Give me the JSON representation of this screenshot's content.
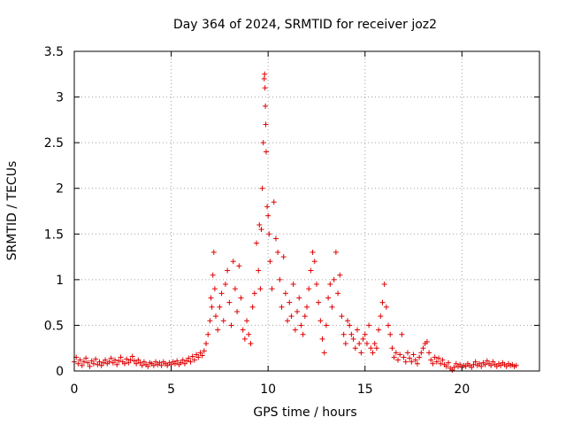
{
  "chart_data": {
    "type": "scatter",
    "title": "Day 364 of 2024, SRMTID for receiver joz2",
    "xlabel": "GPS time / hours",
    "ylabel": "SRMTID / TECUs",
    "xlim": [
      0,
      24
    ],
    "ylim": [
      0,
      3.5
    ],
    "x_ticks": [
      0,
      5,
      10,
      15,
      20
    ],
    "x_tick_labels": [
      "0",
      "5",
      "10",
      "15",
      "20"
    ],
    "y_ticks": [
      0,
      0.5,
      1,
      1.5,
      2,
      2.5,
      3,
      3.5
    ],
    "y_tick_labels": [
      "0",
      "0.5",
      "1",
      "1.5",
      "2",
      "2.5",
      "3",
      "3.5"
    ],
    "grid": true,
    "marker": "+",
    "series": [
      {
        "name": "SRMTID",
        "color": "#e00000",
        "points": [
          [
            0.0,
            0.1
          ],
          [
            0.1,
            0.15
          ],
          [
            0.2,
            0.08
          ],
          [
            0.3,
            0.12
          ],
          [
            0.4,
            0.06
          ],
          [
            0.5,
            0.1
          ],
          [
            0.6,
            0.14
          ],
          [
            0.7,
            0.09
          ],
          [
            0.8,
            0.05
          ],
          [
            0.9,
            0.11
          ],
          [
            1.0,
            0.08
          ],
          [
            1.1,
            0.13
          ],
          [
            1.2,
            0.07
          ],
          [
            1.3,
            0.1
          ],
          [
            1.4,
            0.06
          ],
          [
            1.5,
            0.09
          ],
          [
            1.6,
            0.12
          ],
          [
            1.7,
            0.08
          ],
          [
            1.8,
            0.1
          ],
          [
            1.9,
            0.14
          ],
          [
            2.0,
            0.09
          ],
          [
            2.1,
            0.12
          ],
          [
            2.2,
            0.07
          ],
          [
            2.3,
            0.11
          ],
          [
            2.4,
            0.15
          ],
          [
            2.5,
            0.1
          ],
          [
            2.6,
            0.08
          ],
          [
            2.7,
            0.13
          ],
          [
            2.8,
            0.09
          ],
          [
            2.9,
            0.12
          ],
          [
            3.0,
            0.16
          ],
          [
            3.1,
            0.11
          ],
          [
            3.2,
            0.08
          ],
          [
            3.3,
            0.12
          ],
          [
            3.4,
            0.09
          ],
          [
            3.5,
            0.06
          ],
          [
            3.6,
            0.1
          ],
          [
            3.7,
            0.07
          ],
          [
            3.8,
            0.05
          ],
          [
            3.9,
            0.09
          ],
          [
            4.0,
            0.08
          ],
          [
            4.1,
            0.06
          ],
          [
            4.2,
            0.1
          ],
          [
            4.3,
            0.07
          ],
          [
            4.4,
            0.09
          ],
          [
            4.5,
            0.06
          ],
          [
            4.6,
            0.1
          ],
          [
            4.7,
            0.08
          ],
          [
            4.8,
            0.06
          ],
          [
            4.9,
            0.09
          ],
          [
            5.0,
            0.07
          ],
          [
            5.1,
            0.1
          ],
          [
            5.2,
            0.08
          ],
          [
            5.3,
            0.11
          ],
          [
            5.4,
            0.07
          ],
          [
            5.5,
            0.09
          ],
          [
            5.6,
            0.12
          ],
          [
            5.7,
            0.08
          ],
          [
            5.8,
            0.11
          ],
          [
            5.9,
            0.14
          ],
          [
            6.0,
            0.1
          ],
          [
            6.1,
            0.16
          ],
          [
            6.2,
            0.12
          ],
          [
            6.3,
            0.18
          ],
          [
            6.4,
            0.15
          ],
          [
            6.5,
            0.2
          ],
          [
            6.6,
            0.17
          ],
          [
            6.7,
            0.22
          ],
          [
            6.8,
            0.3
          ],
          [
            6.9,
            0.4
          ],
          [
            7.0,
            0.55
          ],
          [
            7.05,
            0.8
          ],
          [
            7.1,
            0.7
          ],
          [
            7.15,
            1.05
          ],
          [
            7.2,
            1.3
          ],
          [
            7.25,
            0.9
          ],
          [
            7.3,
            0.6
          ],
          [
            7.4,
            0.45
          ],
          [
            7.5,
            0.7
          ],
          [
            7.6,
            0.85
          ],
          [
            7.7,
            0.55
          ],
          [
            7.8,
            0.95
          ],
          [
            7.9,
            1.1
          ],
          [
            8.0,
            0.75
          ],
          [
            8.1,
            0.5
          ],
          [
            8.2,
            1.2
          ],
          [
            8.3,
            0.9
          ],
          [
            8.4,
            0.65
          ],
          [
            8.5,
            1.15
          ],
          [
            8.6,
            0.8
          ],
          [
            8.7,
            0.45
          ],
          [
            8.8,
            0.35
          ],
          [
            8.9,
            0.55
          ],
          [
            9.0,
            0.4
          ],
          [
            9.1,
            0.3
          ],
          [
            9.2,
            0.7
          ],
          [
            9.3,
            0.85
          ],
          [
            9.4,
            1.4
          ],
          [
            9.5,
            1.1
          ],
          [
            9.55,
            1.6
          ],
          [
            9.6,
            0.9
          ],
          [
            9.65,
            1.55
          ],
          [
            9.7,
            2.0
          ],
          [
            9.75,
            2.5
          ],
          [
            9.8,
            3.2
          ],
          [
            9.82,
            3.25
          ],
          [
            9.84,
            3.1
          ],
          [
            9.86,
            2.9
          ],
          [
            9.88,
            2.7
          ],
          [
            9.9,
            2.4
          ],
          [
            9.95,
            1.8
          ],
          [
            10.0,
            1.7
          ],
          [
            10.05,
            1.5
          ],
          [
            10.1,
            1.2
          ],
          [
            10.2,
            0.9
          ],
          [
            10.3,
            1.85
          ],
          [
            10.4,
            1.45
          ],
          [
            10.5,
            1.3
          ],
          [
            10.6,
            1.0
          ],
          [
            10.7,
            0.7
          ],
          [
            10.8,
            1.25
          ],
          [
            10.9,
            0.85
          ],
          [
            11.0,
            0.55
          ],
          [
            11.1,
            0.75
          ],
          [
            11.2,
            0.6
          ],
          [
            11.3,
            0.95
          ],
          [
            11.4,
            0.45
          ],
          [
            11.5,
            0.65
          ],
          [
            11.6,
            0.8
          ],
          [
            11.7,
            0.5
          ],
          [
            11.8,
            0.4
          ],
          [
            11.9,
            0.6
          ],
          [
            12.0,
            0.7
          ],
          [
            12.1,
            0.9
          ],
          [
            12.2,
            1.1
          ],
          [
            12.3,
            1.3
          ],
          [
            12.4,
            1.2
          ],
          [
            12.5,
            0.95
          ],
          [
            12.6,
            0.75
          ],
          [
            12.7,
            0.55
          ],
          [
            12.8,
            0.35
          ],
          [
            12.9,
            0.2
          ],
          [
            13.0,
            0.5
          ],
          [
            13.1,
            0.8
          ],
          [
            13.2,
            0.95
          ],
          [
            13.3,
            0.7
          ],
          [
            13.4,
            1.0
          ],
          [
            13.5,
            1.3
          ],
          [
            13.6,
            0.85
          ],
          [
            13.7,
            1.05
          ],
          [
            13.8,
            0.6
          ],
          [
            13.9,
            0.4
          ],
          [
            14.0,
            0.3
          ],
          [
            14.1,
            0.55
          ],
          [
            14.2,
            0.5
          ],
          [
            14.3,
            0.4
          ],
          [
            14.4,
            0.35
          ],
          [
            14.5,
            0.25
          ],
          [
            14.6,
            0.45
          ],
          [
            14.7,
            0.3
          ],
          [
            14.8,
            0.2
          ],
          [
            14.9,
            0.35
          ],
          [
            15.0,
            0.4
          ],
          [
            15.1,
            0.3
          ],
          [
            15.2,
            0.5
          ],
          [
            15.3,
            0.25
          ],
          [
            15.4,
            0.2
          ],
          [
            15.5,
            0.3
          ],
          [
            15.6,
            0.25
          ],
          [
            15.7,
            0.45
          ],
          [
            15.8,
            0.6
          ],
          [
            15.9,
            0.75
          ],
          [
            16.0,
            0.95
          ],
          [
            16.1,
            0.7
          ],
          [
            16.2,
            0.5
          ],
          [
            16.3,
            0.4
          ],
          [
            16.4,
            0.25
          ],
          [
            16.5,
            0.15
          ],
          [
            16.6,
            0.2
          ],
          [
            16.7,
            0.12
          ],
          [
            16.8,
            0.18
          ],
          [
            16.9,
            0.4
          ],
          [
            17.0,
            0.15
          ],
          [
            17.1,
            0.1
          ],
          [
            17.2,
            0.2
          ],
          [
            17.3,
            0.14
          ],
          [
            17.4,
            0.1
          ],
          [
            17.5,
            0.18
          ],
          [
            17.6,
            0.12
          ],
          [
            17.7,
            0.08
          ],
          [
            17.8,
            0.15
          ],
          [
            17.9,
            0.2
          ],
          [
            18.0,
            0.25
          ],
          [
            18.1,
            0.3
          ],
          [
            18.2,
            0.32
          ],
          [
            18.3,
            0.2
          ],
          [
            18.4,
            0.12
          ],
          [
            18.5,
            0.08
          ],
          [
            18.6,
            0.15
          ],
          [
            18.7,
            0.1
          ],
          [
            18.8,
            0.14
          ],
          [
            18.9,
            0.08
          ],
          [
            19.0,
            0.12
          ],
          [
            19.1,
            0.07
          ],
          [
            19.2,
            0.05
          ],
          [
            19.3,
            0.09
          ],
          [
            19.4,
            0.03
          ],
          [
            19.5,
            0.01
          ],
          [
            19.6,
            0.04
          ],
          [
            19.7,
            0.08
          ],
          [
            19.8,
            0.05
          ],
          [
            19.9,
            0.07
          ],
          [
            20.0,
            0.04
          ],
          [
            20.1,
            0.06
          ],
          [
            20.2,
            0.05
          ],
          [
            20.3,
            0.08
          ],
          [
            20.4,
            0.06
          ],
          [
            20.5,
            0.04
          ],
          [
            20.6,
            0.07
          ],
          [
            20.7,
            0.1
          ],
          [
            20.8,
            0.06
          ],
          [
            20.9,
            0.08
          ],
          [
            21.0,
            0.05
          ],
          [
            21.1,
            0.09
          ],
          [
            21.2,
            0.07
          ],
          [
            21.3,
            0.11
          ],
          [
            21.4,
            0.08
          ],
          [
            21.5,
            0.06
          ],
          [
            21.6,
            0.1
          ],
          [
            21.7,
            0.07
          ],
          [
            21.8,
            0.05
          ],
          [
            21.9,
            0.08
          ],
          [
            22.0,
            0.06
          ],
          [
            22.1,
            0.09
          ],
          [
            22.2,
            0.07
          ],
          [
            22.3,
            0.05
          ],
          [
            22.4,
            0.08
          ],
          [
            22.5,
            0.06
          ],
          [
            22.6,
            0.07
          ],
          [
            22.7,
            0.05
          ],
          [
            22.8,
            0.06
          ]
        ]
      }
    ]
  }
}
